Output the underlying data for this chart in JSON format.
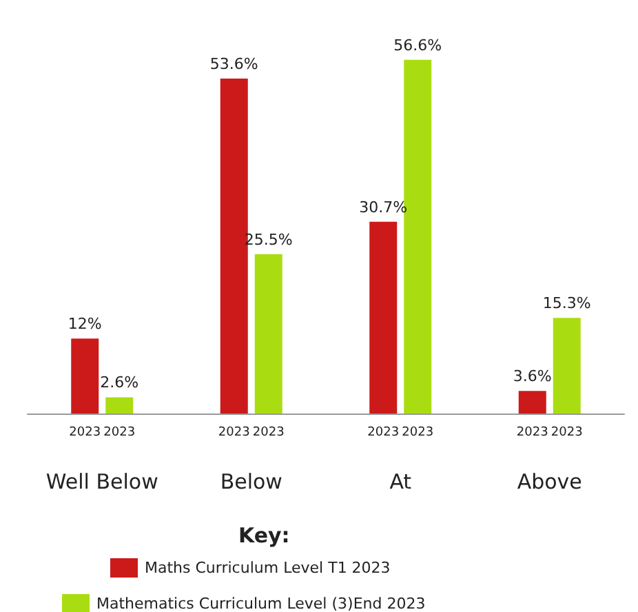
{
  "chart_data": {
    "type": "bar",
    "categories": [
      "Well Below",
      "Below",
      "At",
      "Above"
    ],
    "series": [
      {
        "name": "Maths Curriculum Level T1 2023",
        "color": "#cc1a1a",
        "values": [
          12,
          53.6,
          30.7,
          3.6
        ],
        "value_labels": [
          "12%",
          "53.6%",
          "30.7%",
          "3.6%"
        ]
      },
      {
        "name": "Mathematics Curriculum Level (3)End 2023",
        "color": "#aadd11",
        "values": [
          2.6,
          25.5,
          56.6,
          15.3
        ],
        "value_labels": [
          "2.6%",
          "25.5%",
          "56.6%",
          "15.3%"
        ]
      }
    ],
    "legend_title": "Key:",
    "legend": "bottom",
    "grid": false,
    "annotations": [
      "2023",
      "2023",
      "2023",
      "2023",
      "2023",
      "2023",
      "2023",
      "2023"
    ]
  }
}
